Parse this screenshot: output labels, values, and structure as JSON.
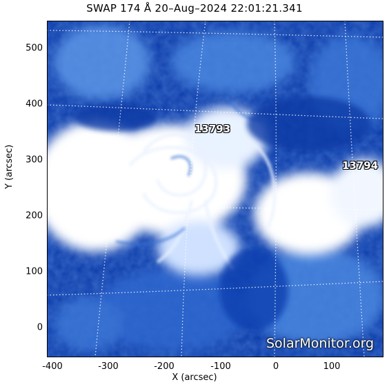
{
  "title": "SWAP 174 Å 20–Aug–2024 22:01:21.341",
  "axes": {
    "xlabel": "X (arcsec)",
    "ylabel": "Y (arcsec)",
    "xticks": [
      "-400",
      "-300",
      "-200",
      "-100",
      "0",
      "100"
    ],
    "xtick_values": [
      -400,
      -300,
      -200,
      -100,
      0,
      100
    ],
    "yticks": [
      "0",
      "100",
      "200",
      "300",
      "400",
      "500"
    ],
    "ytick_values": [
      0,
      100,
      200,
      300,
      400,
      500
    ],
    "xlim": [
      -410,
      190
    ],
    "ylim": [
      -55,
      545
    ]
  },
  "regions": [
    {
      "label": "13793",
      "x": -130,
      "y": 355
    },
    {
      "label": "13794",
      "x": 153,
      "y": 290
    }
  ],
  "watermark": "SolarMonitor.org",
  "colors": {
    "background_blue": "#0a3aa8",
    "mid_blue": "#3f7fe0",
    "bright": "#ffffff"
  }
}
